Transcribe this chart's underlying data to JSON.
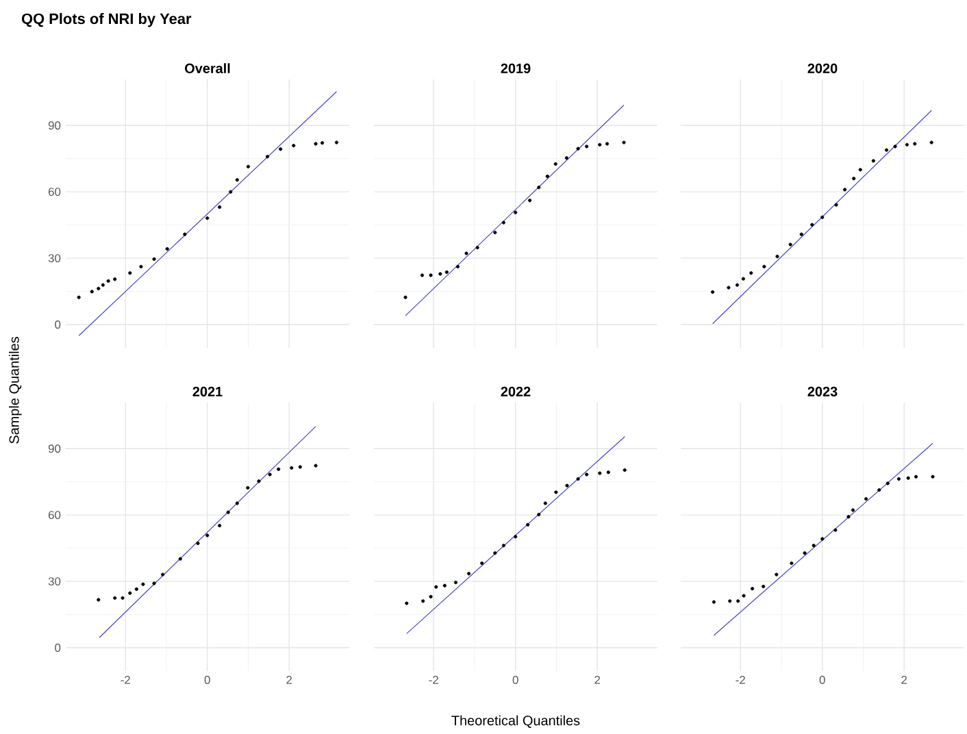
{
  "chart_data": [
    {
      "type": "scatter",
      "title": "Overall",
      "annotations": [
        "QQ Plots of NRI by Year"
      ],
      "xlim": [
        -3.46,
        3.47
      ],
      "ylim": [
        -10.5,
        110.8
      ],
      "xticks": [
        -2,
        0,
        2
      ],
      "yticks": [
        0,
        30,
        60,
        90
      ],
      "grid": true,
      "tick_labels": "y",
      "series": [
        {
          "color": "#000000",
          "marker": "circle",
          "x": [
            -3.14,
            -2.82,
            -2.66,
            -2.55,
            -2.42,
            -2.26,
            -1.89,
            -1.62,
            -1.3,
            -0.98,
            -0.55,
            0,
            0.3,
            0.57,
            0.73,
            1.0,
            1.47,
            1.79,
            2.11,
            2.65,
            2.81,
            3.16
          ],
          "values": [
            12.3,
            14.9,
            16.3,
            17.9,
            19.7,
            20.5,
            23.3,
            26.2,
            29.6,
            34.2,
            40.8,
            48.1,
            53.1,
            60.0,
            65.4,
            71.4,
            75.9,
            79.3,
            80.9,
            81.7,
            82.1,
            82.3
          ]
        },
        {
          "type": "line",
          "color": "#4646c8",
          "marker": "none",
          "x": [
            -3.14,
            3.16
          ],
          "values": [
            -5,
            105.3
          ]
        }
      ]
    },
    {
      "type": "scatter",
      "title": "2019",
      "xlim": [
        -3.46,
        3.47
      ],
      "ylim": [
        -10.5,
        110.8
      ],
      "xticks": [
        -2,
        0,
        2
      ],
      "yticks": [
        0,
        30,
        60,
        90
      ],
      "grid": true,
      "tick_labels": false,
      "series": [
        {
          "color": "#000000",
          "marker": "circle",
          "x": [
            -2.69,
            -2.28,
            -2.07,
            -1.84,
            -1.68,
            -1.41,
            -1.2,
            -0.93,
            -0.5,
            -0.29,
            0,
            0.35,
            0.57,
            0.78,
            0.98,
            1.25,
            1.53,
            1.74,
            2.06,
            2.24,
            2.65
          ],
          "values": [
            12.3,
            22.3,
            22.3,
            22.9,
            23.7,
            26.2,
            32.2,
            34.8,
            41.6,
            46.1,
            50.7,
            56.1,
            62.0,
            67.0,
            72.6,
            75.3,
            79.5,
            80.5,
            81.3,
            81.7,
            82.3
          ]
        },
        {
          "type": "line",
          "color": "#4646c8",
          "marker": "none",
          "x": [
            -2.69,
            2.65
          ],
          "values": [
            4.0,
            99.2
          ]
        }
      ]
    },
    {
      "type": "scatter",
      "title": "2020",
      "xlim": [
        -3.46,
        3.47
      ],
      "ylim": [
        -10.5,
        110.8
      ],
      "xticks": [
        -2,
        0,
        2
      ],
      "yticks": [
        0,
        30,
        60,
        90
      ],
      "grid": true,
      "tick_labels": false,
      "series": [
        {
          "color": "#000000",
          "marker": "circle",
          "x": [
            -2.68,
            -2.29,
            -2.08,
            -1.93,
            -1.74,
            -1.42,
            -1.1,
            -0.78,
            -0.51,
            -0.25,
            0,
            0.34,
            0.55,
            0.77,
            0.93,
            1.25,
            1.57,
            1.78,
            2.07,
            2.26,
            2.67
          ],
          "values": [
            14.7,
            16.7,
            17.9,
            20.7,
            23.3,
            26.2,
            30.8,
            36.2,
            40.8,
            45.1,
            48.5,
            54.1,
            61.0,
            66.0,
            70.0,
            74.0,
            78.9,
            80.5,
            81.3,
            81.7,
            82.3
          ]
        },
        {
          "type": "line",
          "color": "#4646c8",
          "marker": "none",
          "x": [
            -2.68,
            2.67
          ],
          "values": [
            0.4,
            96.8
          ]
        }
      ]
    },
    {
      "type": "scatter",
      "title": "2021",
      "ylabel": "Sample Quantiles",
      "xlim": [
        -3.46,
        3.47
      ],
      "ylim": [
        -10.5,
        110.8
      ],
      "xticks": [
        -2,
        0,
        2
      ],
      "yticks": [
        0,
        30,
        60,
        90
      ],
      "grid": true,
      "series": [
        {
          "color": "#000000",
          "marker": "circle",
          "x": [
            -2.66,
            -2.26,
            -2.07,
            -1.89,
            -1.73,
            -1.57,
            -1.3,
            -1.09,
            -0.66,
            -0.23,
            0,
            0.3,
            0.51,
            0.73,
            0.99,
            1.26,
            1.53,
            1.74,
            2.06,
            2.27,
            2.65
          ],
          "values": [
            21.7,
            22.5,
            22.5,
            24.7,
            26.5,
            28.7,
            29.1,
            33.1,
            40.2,
            47.2,
            50.8,
            55.2,
            61.2,
            65.3,
            72.3,
            75.3,
            78.3,
            80.7,
            81.3,
            81.7,
            82.3
          ]
        },
        {
          "type": "line",
          "color": "#4646c8",
          "marker": "none",
          "x": [
            -2.64,
            2.65
          ],
          "values": [
            4.6,
            100
          ]
        }
      ]
    },
    {
      "type": "scatter",
      "title": "2022",
      "xlabel": "Theoretical Quantiles",
      "xlim": [
        -3.46,
        3.47
      ],
      "ylim": [
        -10.5,
        110.8
      ],
      "xticks": [
        -2,
        0,
        2
      ],
      "yticks": [
        0,
        30,
        60,
        90
      ],
      "grid": true,
      "tick_labels": "x",
      "series": [
        {
          "color": "#000000",
          "marker": "circle",
          "x": [
            -2.66,
            -2.26,
            -2.07,
            -1.94,
            -1.73,
            -1.46,
            -1.14,
            -0.82,
            -0.5,
            -0.29,
            0,
            0.3,
            0.57,
            0.73,
            0.99,
            1.26,
            1.53,
            1.74,
            2.06,
            2.27,
            2.67
          ],
          "values": [
            20.1,
            21.1,
            23.1,
            27.5,
            28.1,
            29.5,
            33.5,
            38.2,
            42.8,
            46.2,
            50.2,
            55.6,
            60.2,
            65.3,
            70.3,
            73.3,
            76.3,
            78.3,
            78.9,
            79.3,
            80.3
          ]
        },
        {
          "type": "line",
          "color": "#4646c8",
          "marker": "none",
          "x": [
            -2.66,
            2.67
          ],
          "values": [
            6.4,
            95.4
          ]
        }
      ]
    },
    {
      "type": "scatter",
      "title": "2023",
      "xlim": [
        -3.46,
        3.47
      ],
      "ylim": [
        -10.5,
        110.8
      ],
      "xticks": [
        -2,
        0,
        2
      ],
      "yticks": [
        0,
        30,
        60,
        90
      ],
      "grid": true,
      "tick_labels": "x",
      "series": [
        {
          "color": "#000000",
          "marker": "circle",
          "x": [
            -2.65,
            -2.26,
            -2.06,
            -1.92,
            -1.71,
            -1.44,
            -1.12,
            -0.75,
            -0.43,
            -0.21,
            0,
            0.32,
            0.64,
            0.75,
            1.07,
            1.39,
            1.6,
            1.87,
            2.1,
            2.29,
            2.7
          ],
          "values": [
            20.7,
            21.1,
            21.1,
            23.5,
            26.7,
            27.7,
            33.1,
            38.2,
            42.8,
            46.2,
            49.2,
            53.2,
            59.2,
            62.2,
            67.3,
            71.3,
            74.3,
            76.3,
            76.7,
            77.3,
            77.3
          ]
        },
        {
          "type": "line",
          "color": "#4646c8",
          "marker": "none",
          "x": [
            -2.65,
            2.7
          ],
          "values": [
            5.6,
            92.4
          ]
        }
      ]
    }
  ]
}
